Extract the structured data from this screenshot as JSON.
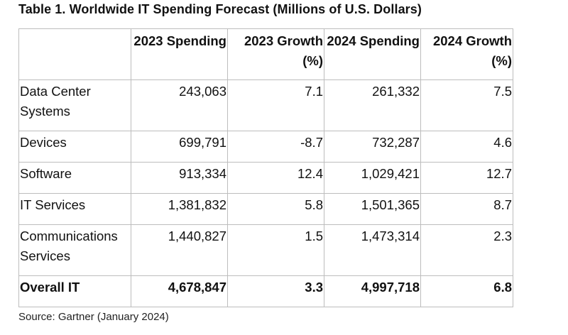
{
  "title": "Table 1. Worldwide IT Spending Forecast (Millions of U.S. Dollars)",
  "headers": [
    "",
    "2023 Spending",
    "2023 Growth (%)",
    "2024 Spending",
    "2024 Growth (%)"
  ],
  "rows": [
    {
      "label": "Data Center Systems",
      "s2023": "243,063",
      "g2023": "7.1",
      "s2024": "261,332",
      "g2024": "7.5"
    },
    {
      "label": "Devices",
      "s2023": "699,791",
      "g2023": "-8.7",
      "s2024": "732,287",
      "g2024": "4.6"
    },
    {
      "label": "Software",
      "s2023": "913,334",
      "g2023": "12.4",
      "s2024": "1,029,421",
      "g2024": "12.7"
    },
    {
      "label": "IT Services",
      "s2023": "1,381,832",
      "g2023": "5.8",
      "s2024": "1,501,365",
      "g2024": "8.7"
    },
    {
      "label": "Communications Services",
      "s2023": "1,440,827",
      "g2023": "1.5",
      "s2024": "1,473,314",
      "g2024": "2.3"
    }
  ],
  "total": {
    "label": "Overall IT",
    "s2023": "4,678,847",
    "g2023": "3.3",
    "s2024": "4,997,718",
    "g2024": "6.8"
  },
  "source": "Source: Gartner (January 2024)"
}
